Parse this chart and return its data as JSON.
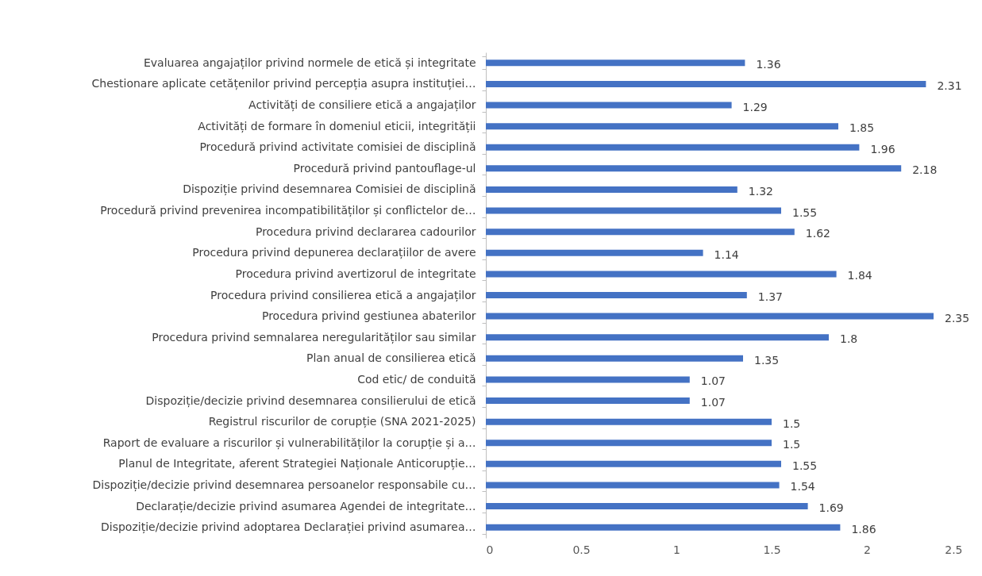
{
  "chart_data": {
    "type": "bar",
    "orientation": "horizontal",
    "categories": [
      "Evaluarea angajaților privind normele de etică și integritate",
      "Chestionare aplicate cetățenilor privind percepția asupra instituției…",
      "Activități de consiliere etică a angajaților",
      "Activități de formare în domeniul eticii, integrității",
      "Procedură privind activitate comisiei de disciplină",
      "Procedură privind pantouflage-ul",
      "Dispoziție privind desemnarea Comisiei de disciplină",
      "Procedură privind prevenirea incompatibilităților și conflictelor de…",
      "Procedura privind declararea cadourilor",
      "Procedura privind depunerea declarațiilor de avere",
      "Procedura privind avertizorul de integritate",
      "Procedura privind consilierea etică a angajaților",
      "Procedura privind gestiunea abaterilor",
      "Procedura privind semnalarea neregularităților sau similar",
      "Plan anual de consilierea etică",
      "Cod etic/ de conduită",
      "Dispoziție/decizie privind desemnarea consilierului de etică",
      "Registrul riscurilor de corupție (SNA 2021-2025)",
      "Raport de evaluare a riscurilor și vulnerabilităților la corupție și a…",
      "Planul de Integritate, aferent Strategiei Naționale Anticorupție…",
      "Dispoziție/decizie privind desemnarea persoanelor responsabile cu…",
      "Declarație/decizie privind asumarea Agendei de integritate…",
      "Dispoziție/decizie privind adoptarea Declarației privind asumarea…"
    ],
    "values": [
      1.36,
      2.31,
      1.29,
      1.85,
      1.96,
      2.18,
      1.32,
      1.55,
      1.62,
      1.14,
      1.84,
      1.37,
      2.35,
      1.8,
      1.35,
      1.07,
      1.07,
      1.5,
      1.5,
      1.55,
      1.54,
      1.69,
      1.86
    ],
    "color": "#4472c4",
    "data_labels": true,
    "xlim": [
      0,
      2.5
    ],
    "xticks": [
      0,
      0.5,
      1,
      1.5,
      2,
      2.5
    ],
    "grid": false
  }
}
